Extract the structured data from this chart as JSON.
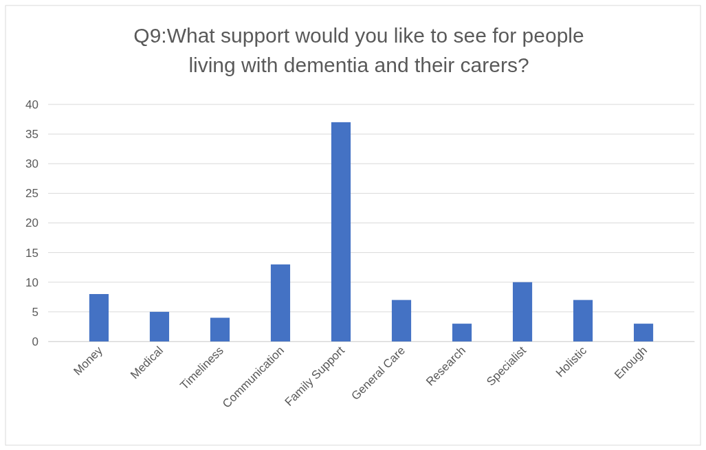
{
  "chart_data": {
    "type": "bar",
    "title": "Q9:What support would you like to see for people living with dementia and their carers?",
    "categories": [
      "Money",
      "Medical",
      "Timeliness",
      "Communication",
      "Family Support",
      "General Care",
      "Research",
      "Specialist",
      "Holistic",
      "Enough"
    ],
    "values": [
      8,
      5,
      4,
      13,
      37,
      7,
      3,
      10,
      7,
      3
    ],
    "color": "#4472c4",
    "ylim": [
      0,
      40
    ],
    "yticks": [
      0,
      5,
      10,
      15,
      20,
      25,
      30,
      35,
      40
    ],
    "grid": "y"
  }
}
